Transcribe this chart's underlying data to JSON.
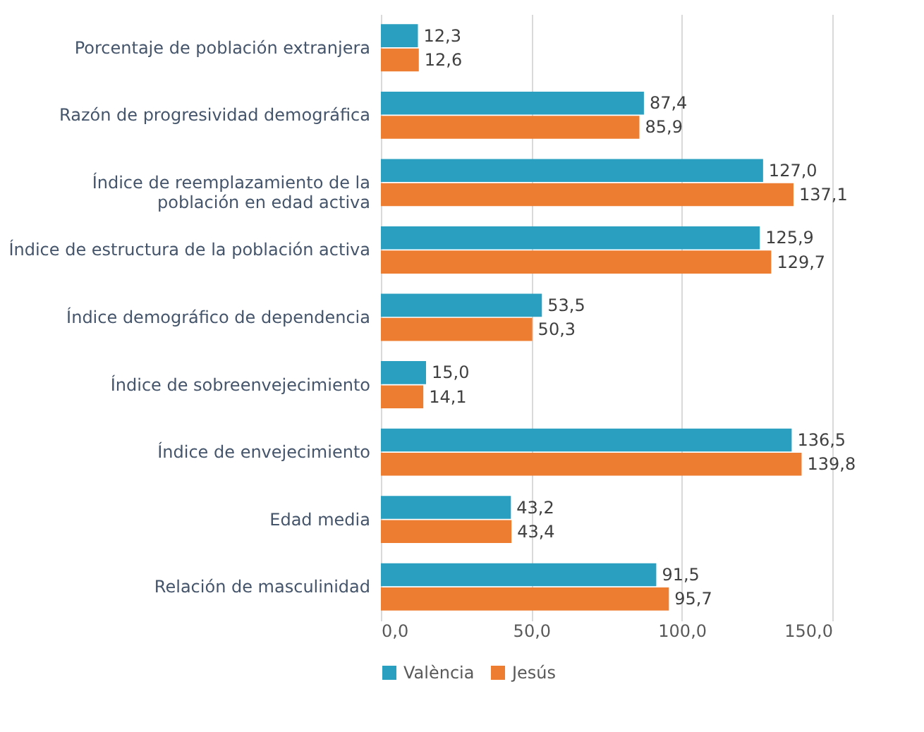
{
  "chart_data": {
    "type": "bar",
    "orientation": "horizontal",
    "categories": [
      "Porcentaje de población extranjera",
      "Razón de progresividad demográfica",
      "Índice de reemplazamiento de la\npoblación en edad activa",
      "Índice de estructura de la población activa",
      "Índice demográfico de dependencia",
      "Índice de sobreenvejecimiento",
      "Índice de envejecimiento",
      "Edad media",
      "Relación de masculinidad"
    ],
    "series": [
      {
        "name": "València",
        "color": "#2a9fc0",
        "values": [
          12.3,
          87.4,
          127.0,
          125.9,
          53.5,
          15.0,
          136.5,
          43.2,
          91.5
        ],
        "value_labels": [
          "12,3",
          "87,4",
          "127,0",
          "125,9",
          "53,5",
          "15,0",
          "136,5",
          "43,2",
          "91,5"
        ]
      },
      {
        "name": "Jesús",
        "color": "#ed7d31",
        "values": [
          12.6,
          85.9,
          137.1,
          129.7,
          50.3,
          14.1,
          139.8,
          43.4,
          95.7
        ],
        "value_labels": [
          "12,6",
          "85,9",
          "137,1",
          "129,7",
          "50,3",
          "14,1",
          "139,8",
          "43,4",
          "95,7"
        ]
      }
    ],
    "xlim": [
      0,
      150
    ],
    "xticks": [
      {
        "value": 0,
        "label": "0,0"
      },
      {
        "value": 50,
        "label": "50,0"
      },
      {
        "value": 100,
        "label": "100,0"
      },
      {
        "value": 150,
        "label": "150,0"
      }
    ],
    "grid": "x",
    "legend": "bottom"
  }
}
